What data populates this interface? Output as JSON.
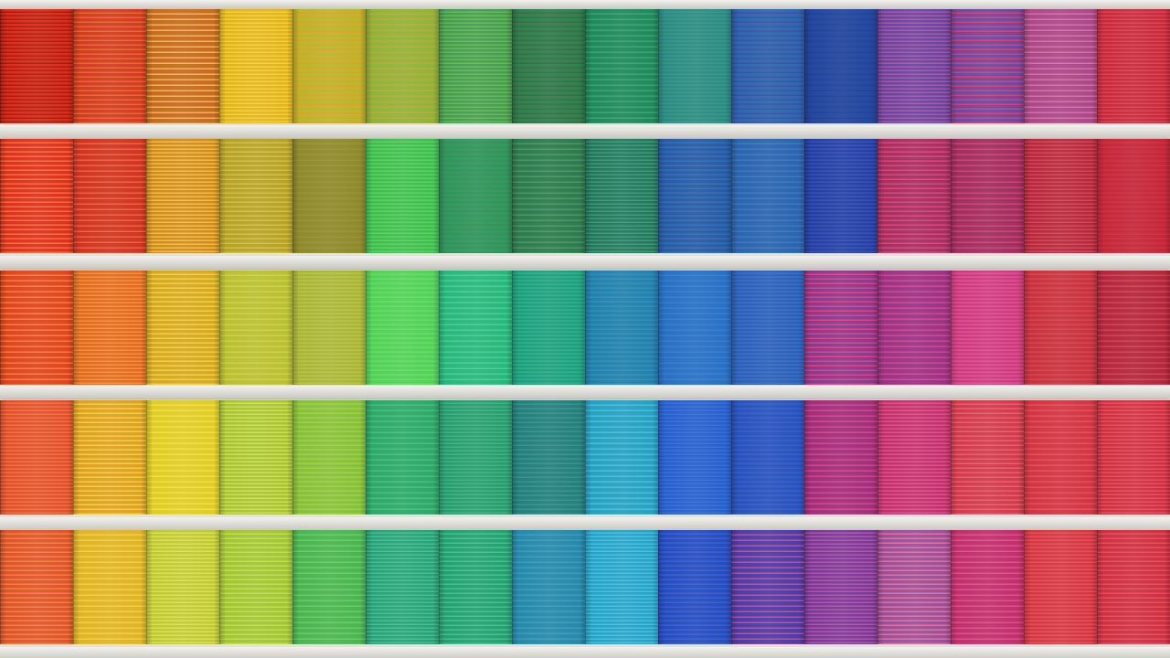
{
  "scene": {
    "subject": "building-facade-with-colored-louvered-blinds",
    "slab_color": "#dedcd7",
    "gap_color": "#e6e4df"
  },
  "rows": [
    {
      "colors": [
        "#e02a1c",
        "#d63a22",
        "#c96a25",
        "#e2b41c",
        "#b9b72e",
        "#8fb43a",
        "#3f9e55",
        "#2f8050",
        "#1f8a5c",
        "#2a8a88",
        "#2d67b0",
        "#25489e",
        "#5a4aa8",
        "#6a4aa0",
        "#a94a8a",
        "#c42b3c"
      ],
      "stripe": [
        "#8a2a10",
        "#e06a30",
        "#e0c040",
        "#f0d040",
        "#e0a020",
        "#d0a030",
        "#7ab040",
        "#3a6a40",
        "#40a070",
        "#3a9a70",
        "#3a50a0",
        "#2040a0",
        "#e04080",
        "#e03a70",
        "#e06a9a",
        "#e04050"
      ]
    },
    {
      "colors": [
        "#e0301e",
        "#d23424",
        "#d08a24",
        "#b6a22a",
        "#8e8a2e",
        "#3fbd4e",
        "#2f9a5c",
        "#2e7a52",
        "#23765e",
        "#2c5aa0",
        "#2f63ae",
        "#263fa0",
        "#a2325e",
        "#9e3060",
        "#b02a3e",
        "#c3283a"
      ],
      "stripe": [
        "#f07040",
        "#e06a30",
        "#f0c030",
        "#d0c040",
        "#a09030",
        "#5ad060",
        "#3a8a5a",
        "#4a9a50",
        "#3a9a70",
        "#2a70c0",
        "#2a80c0",
        "#3050c0",
        "#e04080",
        "#e03a70",
        "#e04050",
        "#d03040"
      ]
    },
    {
      "colors": [
        "#e0461e",
        "#e06a1e",
        "#d7a824",
        "#b9c034",
        "#a6b63a",
        "#55d05a",
        "#2cb67a",
        "#1f9e7a",
        "#2580a8",
        "#2b70c0",
        "#2e5eb4",
        "#8a3a8e",
        "#9a3486",
        "#cc3a7e",
        "#c4343e",
        "#b4283a"
      ],
      "stripe": [
        "#f08040",
        "#f09040",
        "#f0d040",
        "#d0d040",
        "#c0c040",
        "#60e060",
        "#3ad0a0",
        "#2ab090",
        "#2a90c0",
        "#2a80e0",
        "#3070d0",
        "#e04080",
        "#e04080",
        "#e05090",
        "#e04050",
        "#d04060"
      ]
    },
    {
      "colors": [
        "#e0502a",
        "#e0a024",
        "#e0cc2a",
        "#a8c23a",
        "#86c03e",
        "#2fa868",
        "#289c6e",
        "#24807a",
        "#29a0c0",
        "#2a5ec8",
        "#2b52b8",
        "#a0307c",
        "#c0306e",
        "#d43a4a",
        "#d23642",
        "#cf3040"
      ],
      "stripe": [
        "#f07040",
        "#f0d040",
        "#f0e040",
        "#d0e040",
        "#a0d040",
        "#40c080",
        "#40b080",
        "#3a9090",
        "#40c0e0",
        "#3070e0",
        "#3060d0",
        "#e04080",
        "#e05080",
        "#e06070",
        "#e05060",
        "#e05060"
      ]
    },
    {
      "colors": [
        "#e0542c",
        "#e0b428",
        "#bec83a",
        "#a2c43c",
        "#4db452",
        "#2aa078",
        "#26a070",
        "#2a88a8",
        "#28a0c4",
        "#2a4cb8",
        "#4a3ea8",
        "#6a3ea0",
        "#9a5098",
        "#c0306e",
        "#d4363e",
        "#d03040"
      ],
      "stripe": [
        "#f08040",
        "#f0d040",
        "#e0e040",
        "#c0e040",
        "#60d060",
        "#40c090",
        "#40c090",
        "#30a0c0",
        "#40c0e0",
        "#3060e0",
        "#e04080",
        "#e04080",
        "#e070a0",
        "#e05080",
        "#e05060",
        "#e05060"
      ]
    }
  ]
}
